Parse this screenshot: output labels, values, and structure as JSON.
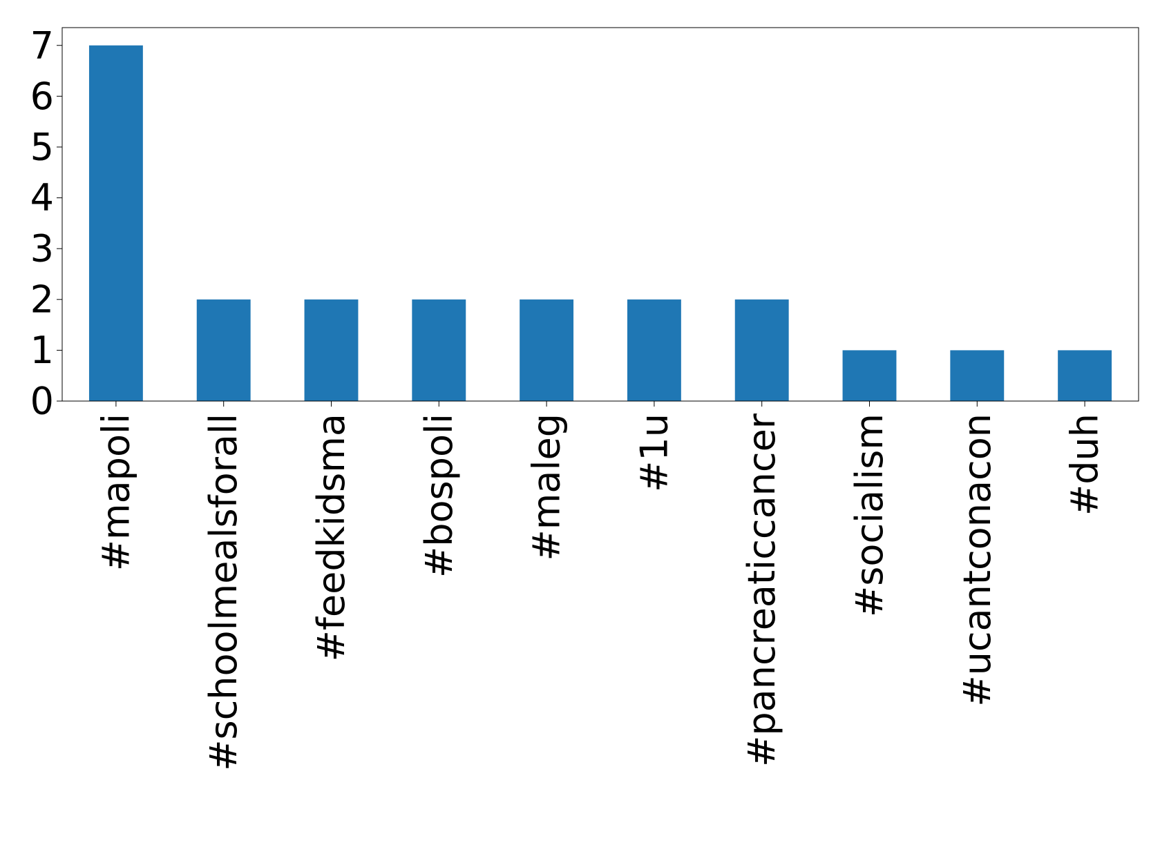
{
  "chart_data": {
    "type": "bar",
    "categories": [
      "#mapoli",
      "#schoolmealsforall",
      "#feedkidsma",
      "#bospoli",
      "#maleg",
      "#1u",
      "#pancreaticcancer",
      "#socialism",
      "#ucantconacon",
      "#duh"
    ],
    "values": [
      7,
      2,
      2,
      2,
      2,
      2,
      2,
      1,
      1,
      1
    ],
    "color": "#1f77b4",
    "ylim": [
      0,
      7.35
    ],
    "yticks": [
      0,
      1,
      2,
      3,
      4,
      5,
      6,
      7
    ],
    "grid": false
  }
}
